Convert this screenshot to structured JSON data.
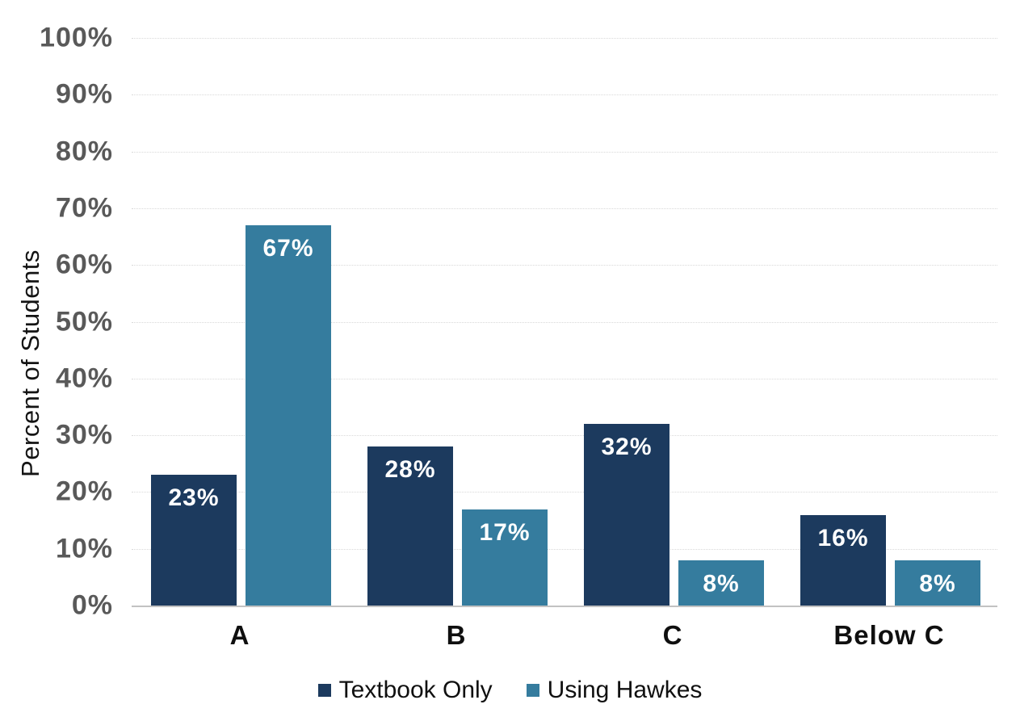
{
  "chart_data": {
    "type": "bar",
    "categories": [
      "A",
      "B",
      "C",
      "Below C"
    ],
    "series": [
      {
        "name": "Textbook Only",
        "color": "#1C3A5E",
        "values": [
          23,
          28,
          32,
          16
        ],
        "labels": [
          "23%",
          "28%",
          "32%",
          "16%"
        ]
      },
      {
        "name": "Using Hawkes",
        "color": "#357C9E",
        "values": [
          67,
          17,
          8,
          8
        ],
        "labels": [
          "67%",
          "17%",
          "8%",
          "8%"
        ]
      }
    ],
    "xlabel": "",
    "ylabel": "Percent of Students",
    "ylim": [
      0,
      100
    ],
    "ytick_step": 10,
    "yticks": [
      "0%",
      "10%",
      "20%",
      "30%",
      "40%",
      "50%",
      "60%",
      "70%",
      "80%",
      "90%",
      "100%"
    ],
    "grid": "horizontal-dotted",
    "legend_position": "bottom",
    "bar_label_position": "inside-top",
    "bar_label_color": "#ffffff"
  },
  "colors": {
    "background": "#ffffff",
    "gridline": "#d9d9d9",
    "baseline": "#c2c2c2",
    "ytick_text": "#595959",
    "xtick_text": "#0f0f0f",
    "legend_text": "#101010"
  }
}
